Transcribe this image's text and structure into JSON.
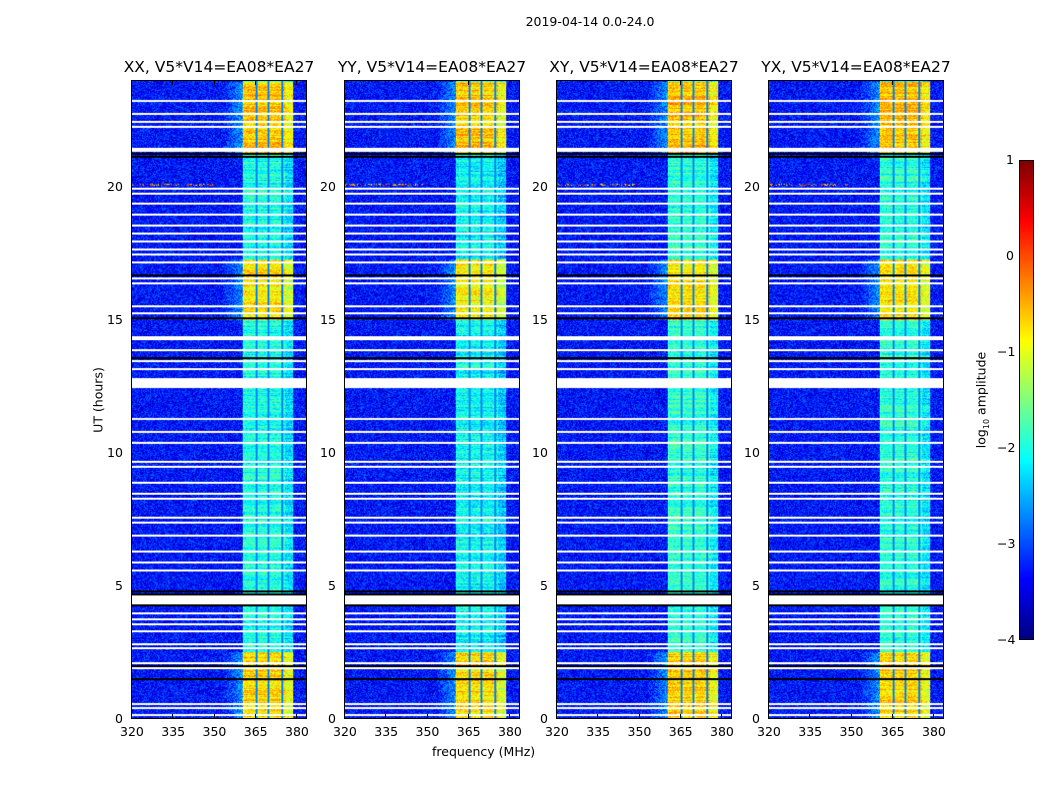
{
  "chart_data": {
    "type": "heatmap",
    "title": "2019-04-14 0.0-24.0",
    "panels": [
      {
        "title": "XX, V5*V14=EA08*EA27",
        "seed": 11,
        "gain": 1.0
      },
      {
        "title": "YY, V5*V14=EA08*EA27",
        "seed": 23,
        "gain": 1.05
      },
      {
        "title": "XY, V5*V14=EA08*EA27",
        "seed": 37,
        "gain": 0.95
      },
      {
        "title": "YX, V5*V14=EA08*EA27",
        "seed": 41,
        "gain": 0.97
      }
    ],
    "xlabel": "frequency (MHz)",
    "ylabel": "UT (hours)",
    "xlim": [
      320,
      384
    ],
    "ylim": [
      0,
      24
    ],
    "xticks": [
      320,
      335,
      350,
      365,
      380
    ],
    "yticks": [
      0,
      5,
      10,
      15,
      20
    ],
    "colorbar": {
      "label_main": "log",
      "label_sub": "10",
      "label_rest": " amplitude",
      "range": [
        -4,
        1
      ],
      "ticks": [
        -4,
        -3,
        -2,
        -1,
        0,
        1
      ],
      "colormap": "jet"
    },
    "background_level": -3.3,
    "signal_band_mhz": [
      360.5,
      379
    ],
    "band_gaps_mhz": [
      365.5,
      370,
      375
    ],
    "strong_periods_ut": [
      [
        0,
        2.5,
        -0.7
      ],
      [
        15.0,
        17.3,
        -0.8
      ],
      [
        21.3,
        24,
        -0.6
      ]
    ],
    "weak_level": -2.0,
    "rfi_line_ut": 20.1,
    "flagged_rows_ut": [
      0.15,
      0.4,
      0.55,
      1.9,
      2.1,
      2.65,
      2.8,
      3.3,
      3.55,
      3.75,
      4.0,
      4.45,
      4.5,
      5.6,
      5.9,
      6.3,
      6.9,
      7.4,
      7.6,
      8.3,
      8.5,
      8.9,
      9.5,
      9.7,
      10.4,
      10.8,
      11.3,
      12.6,
      12.7,
      13.2,
      13.5,
      13.9,
      14.3,
      14.4,
      15.3,
      15.55,
      16.4,
      16.6,
      17.2,
      17.5,
      17.7,
      18.0,
      18.3,
      18.6,
      19.0,
      19.4,
      19.8,
      20.0,
      21.4,
      21.5,
      22.3,
      22.5,
      22.8,
      23.3
    ],
    "dropped_rows_ut": [
      1.5,
      2.0,
      4.3,
      4.7,
      4.8,
      13.6,
      15.1,
      16.7,
      21.2,
      21.3
    ]
  }
}
